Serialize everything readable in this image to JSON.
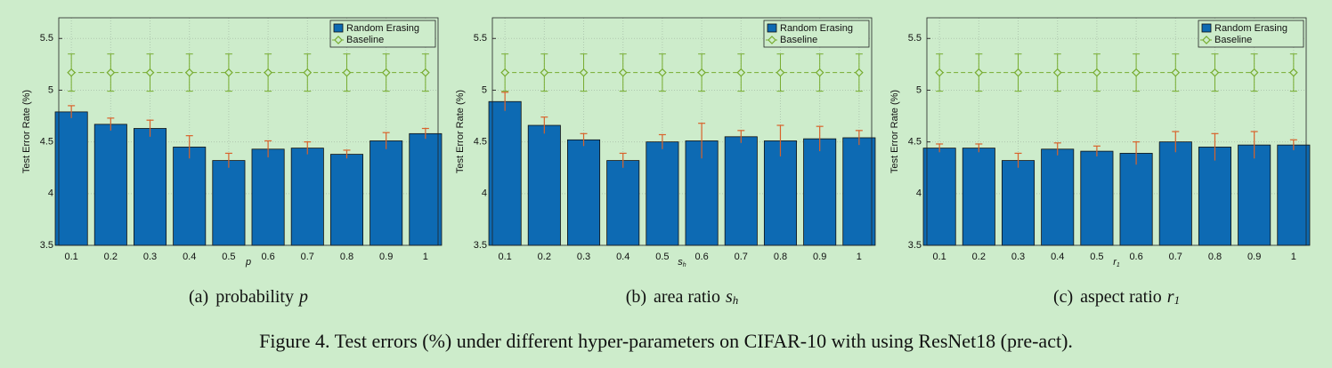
{
  "chart_data": [
    {
      "type": "bar",
      "categories": [
        "0.1",
        "0.2",
        "0.3",
        "0.4",
        "0.5",
        "0.6",
        "0.7",
        "0.8",
        "0.9",
        "1"
      ],
      "x_label": "p",
      "y_label": "Test Error Rate (%)",
      "caption_label": "(a)",
      "caption_text": "probability",
      "caption_var": "p",
      "ylim": [
        3.5,
        5.7
      ],
      "yticks": [
        3.5,
        4,
        4.5,
        5,
        5.5
      ],
      "grid": true,
      "legend": "top-right",
      "series": [
        {
          "name": "Random Erasing",
          "color": "#0d6ab3",
          "error_color": "#d9622b",
          "values": [
            4.79,
            4.67,
            4.63,
            4.45,
            4.32,
            4.43,
            4.44,
            4.38,
            4.51,
            4.58
          ],
          "errors": [
            0.06,
            0.06,
            0.08,
            0.11,
            0.07,
            0.08,
            0.06,
            0.04,
            0.08,
            0.05
          ]
        },
        {
          "name": "Baseline",
          "color": "#77ac30",
          "values": [
            5.17,
            5.17,
            5.17,
            5.17,
            5.17,
            5.17,
            5.17,
            5.17,
            5.17,
            5.17
          ],
          "errors": [
            0.18,
            0.18,
            0.18,
            0.18,
            0.18,
            0.18,
            0.18,
            0.18,
            0.18,
            0.18
          ]
        }
      ]
    },
    {
      "type": "bar",
      "categories": [
        "0.1",
        "0.2",
        "0.3",
        "0.4",
        "0.5",
        "0.6",
        "0.7",
        "0.8",
        "0.9",
        "1"
      ],
      "x_label": "s",
      "x_label_sub": "h",
      "y_label": "Test Error Rate (%)",
      "caption_label": "(b)",
      "caption_text": "area ratio",
      "caption_var": "s",
      "caption_sub": "h",
      "ylim": [
        3.5,
        5.7
      ],
      "yticks": [
        3.5,
        4,
        4.5,
        5,
        5.5
      ],
      "grid": true,
      "legend": "top-right",
      "series": [
        {
          "name": "Random Erasing",
          "color": "#0d6ab3",
          "error_color": "#d9622b",
          "values": [
            4.89,
            4.66,
            4.52,
            4.32,
            4.5,
            4.51,
            4.55,
            4.51,
            4.53,
            4.54
          ],
          "errors": [
            0.09,
            0.08,
            0.06,
            0.07,
            0.07,
            0.17,
            0.06,
            0.15,
            0.12,
            0.07
          ]
        },
        {
          "name": "Baseline",
          "color": "#77ac30",
          "values": [
            5.17,
            5.17,
            5.17,
            5.17,
            5.17,
            5.17,
            5.17,
            5.17,
            5.17,
            5.17
          ],
          "errors": [
            0.18,
            0.18,
            0.18,
            0.18,
            0.18,
            0.18,
            0.18,
            0.18,
            0.18,
            0.18
          ]
        }
      ]
    },
    {
      "type": "bar",
      "categories": [
        "0.1",
        "0.2",
        "0.3",
        "0.4",
        "0.5",
        "0.6",
        "0.7",
        "0.8",
        "0.9",
        "1"
      ],
      "x_label": "r",
      "x_label_sub": "1",
      "y_label": "Test Error Rate (%)",
      "caption_label": "(c)",
      "caption_text": "aspect ratio",
      "caption_var": "r",
      "caption_sub": "1",
      "ylim": [
        3.5,
        5.7
      ],
      "yticks": [
        3.5,
        4,
        4.5,
        5,
        5.5
      ],
      "grid": true,
      "legend": "top-right",
      "series": [
        {
          "name": "Random Erasing",
          "color": "#0d6ab3",
          "error_color": "#d9622b",
          "values": [
            4.44,
            4.44,
            4.32,
            4.43,
            4.41,
            4.39,
            4.5,
            4.45,
            4.47,
            4.47
          ],
          "errors": [
            0.04,
            0.04,
            0.07,
            0.06,
            0.05,
            0.11,
            0.1,
            0.13,
            0.13,
            0.05
          ]
        },
        {
          "name": "Baseline",
          "color": "#77ac30",
          "values": [
            5.17,
            5.17,
            5.17,
            5.17,
            5.17,
            5.17,
            5.17,
            5.17,
            5.17,
            5.17
          ],
          "errors": [
            0.18,
            0.18,
            0.18,
            0.18,
            0.18,
            0.18,
            0.18,
            0.18,
            0.18,
            0.18
          ]
        }
      ]
    }
  ],
  "figure_caption": "Figure 4. Test errors (%) under different hyper-parameters on CIFAR-10 with using ResNet18 (pre-act)."
}
